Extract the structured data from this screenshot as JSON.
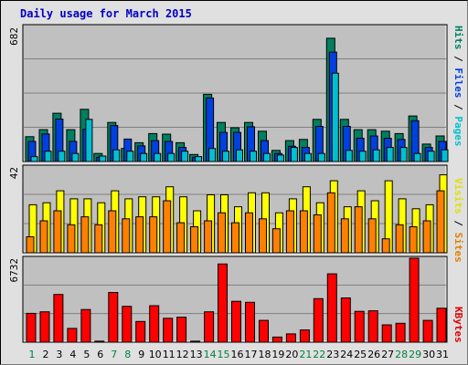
{
  "title": "Daily usage for March 2015",
  "chart_data": [
    {
      "type": "bar",
      "panel": "top",
      "categories": [
        "1",
        "2",
        "3",
        "4",
        "5",
        "6",
        "7",
        "8",
        "9",
        "10",
        "11",
        "12",
        "13",
        "14",
        "15",
        "16",
        "17",
        "18",
        "19",
        "20",
        "21",
        "22",
        "23",
        "24",
        "25",
        "26",
        "27",
        "28",
        "29",
        "30",
        "31"
      ],
      "y_max_label": "682",
      "ylim": [
        0,
        682
      ],
      "side_labels": [
        {
          "text": "Pages",
          "color": "#00c0d0"
        },
        {
          "text": " / ",
          "color": "#000000"
        },
        {
          "text": "Files",
          "color": "#0040e0"
        },
        {
          "text": " / ",
          "color": "#000000"
        },
        {
          "text": "Hits",
          "color": "#008060"
        }
      ],
      "series": [
        {
          "name": "Hits",
          "color": "#008060",
          "values": [
            127,
            163,
            247,
            163,
            267,
            41,
            200,
            67,
            96,
            143,
            140,
            96,
            36,
            344,
            200,
            173,
            200,
            155,
            57,
            107,
            113,
            216,
            631,
            216,
            163,
            163,
            155,
            143,
            233,
            89,
            131
          ]
        },
        {
          "name": "Files",
          "color": "#0040e0",
          "values": [
            103,
            141,
            217,
            103,
            165,
            22,
            184,
            115,
            80,
            107,
            103,
            72,
            22,
            325,
            149,
            149,
            178,
            107,
            41,
            78,
            72,
            180,
            560,
            180,
            119,
            131,
            119,
            113,
            209,
            72,
            103
          ]
        },
        {
          "name": "Pages",
          "color": "#00c0d0",
          "values": [
            25,
            53,
            53,
            41,
            216,
            28,
            60,
            53,
            41,
            41,
            41,
            53,
            25,
            67,
            53,
            60,
            53,
            41,
            33,
            72,
            41,
            41,
            452,
            57,
            53,
            60,
            72,
            72,
            41,
            53,
            60
          ]
        }
      ]
    },
    {
      "type": "bar",
      "panel": "middle",
      "categories": [
        "1",
        "2",
        "3",
        "4",
        "5",
        "6",
        "7",
        "8",
        "9",
        "10",
        "11",
        "12",
        "13",
        "14",
        "15",
        "16",
        "17",
        "18",
        "19",
        "20",
        "21",
        "22",
        "23",
        "24",
        "25",
        "26",
        "27",
        "28",
        "29",
        "30",
        "31"
      ],
      "y_max_label": "42",
      "ylim": [
        0,
        42
      ],
      "side_labels": [
        {
          "text": "Sites",
          "color": "#e08000"
        },
        {
          "text": " / ",
          "color": "#000000"
        },
        {
          "text": "Visits",
          "color": "#e0e000"
        }
      ],
      "series": [
        {
          "name": "Visits",
          "color": "#ffff00",
          "values": [
            24,
            25,
            31,
            27,
            27,
            25,
            31,
            27,
            28,
            28,
            33,
            28,
            21,
            29,
            29,
            23,
            30,
            30,
            20,
            27,
            33,
            25,
            36,
            23,
            31,
            26,
            36,
            27,
            22,
            24,
            39
          ]
        },
        {
          "name": "Sites",
          "color": "#ff8000",
          "values": [
            8,
            16,
            21,
            14,
            18,
            14,
            21,
            17,
            18,
            18,
            26,
            15,
            13,
            16,
            20,
            15,
            20,
            17,
            12,
            21,
            21,
            19,
            30,
            17,
            23,
            17,
            7,
            14,
            13,
            16,
            31
          ]
        }
      ]
    },
    {
      "type": "bar",
      "panel": "bottom",
      "categories": [
        "1",
        "2",
        "3",
        "4",
        "5",
        "6",
        "7",
        "8",
        "9",
        "10",
        "11",
        "12",
        "13",
        "14",
        "15",
        "16",
        "17",
        "18",
        "19",
        "20",
        "21",
        "22",
        "23",
        "24",
        "25",
        "26",
        "27",
        "28",
        "29",
        "30",
        "31"
      ],
      "y_max_label": "6732",
      "ylim": [
        0,
        6732
      ],
      "side_labels": [
        {
          "text": "KBytes",
          "color": "#e00000"
        }
      ],
      "series": [
        {
          "name": "KBytes",
          "color": "#ff0000",
          "values": [
            2360,
            2490,
            3910,
            1130,
            2680,
            80,
            4080,
            2940,
            1700,
            2990,
            1960,
            2050,
            80,
            2490,
            6410,
            3350,
            3270,
            1790,
            420,
            680,
            1000,
            3570,
            5600,
            3630,
            2530,
            2570,
            1420,
            1550,
            6880,
            1790,
            2780
          ]
        }
      ]
    }
  ],
  "x_axis": {
    "labels": [
      "1",
      "2",
      "3",
      "4",
      "5",
      "6",
      "7",
      "8",
      "9",
      "10",
      "11",
      "12",
      "13",
      "14",
      "15",
      "16",
      "17",
      "18",
      "19",
      "20",
      "21",
      "22",
      "23",
      "24",
      "25",
      "26",
      "27",
      "28",
      "29",
      "30",
      "31"
    ],
    "label_colors": [
      "#008040",
      "#000000",
      "#000000",
      "#000000",
      "#000000",
      "#000000",
      "#008040",
      "#008040",
      "#000000",
      "#000000",
      "#000000",
      "#000000",
      "#000000",
      "#008040",
      "#008040",
      "#000000",
      "#000000",
      "#000000",
      "#000000",
      "#000000",
      "#008040",
      "#008040",
      "#000000",
      "#000000",
      "#000000",
      "#000000",
      "#000000",
      "#008040",
      "#008040",
      "#000000",
      "#000000"
    ]
  },
  "colors": {
    "plot_bg": "#c0c0c0",
    "grid": "#808080",
    "axis_label": "#000000"
  }
}
